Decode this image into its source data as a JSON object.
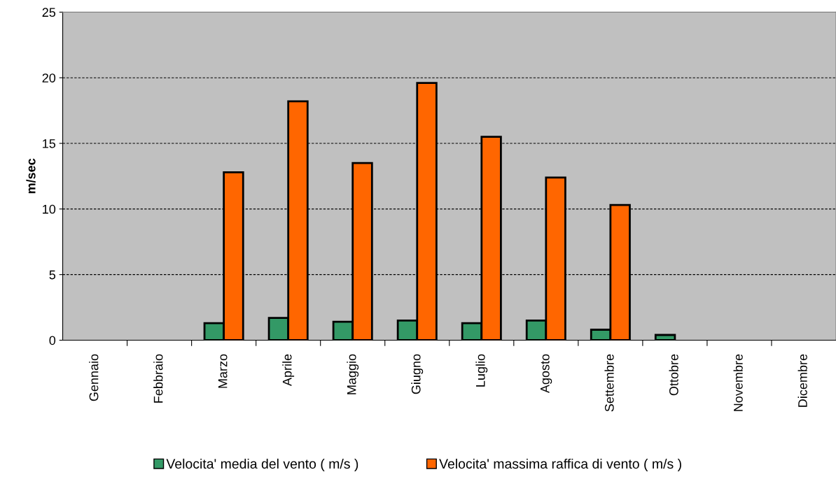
{
  "chart_data": {
    "type": "bar",
    "ylabel": "m/sec",
    "categories": [
      "Gennaio",
      "Febbraio",
      "Marzo",
      "Aprile",
      "Maggio",
      "Giugno",
      "Luglio",
      "Agosto",
      "Settembre",
      "Ottobre",
      "Novembre",
      "Dicembre"
    ],
    "series": [
      {
        "name": "Velocita' media del vento ( m/s )",
        "color": "#339966",
        "values": [
          null,
          null,
          1.3,
          1.7,
          1.4,
          1.5,
          1.3,
          1.5,
          0.8,
          0.4,
          null,
          null
        ]
      },
      {
        "name": "Velocita' massima raffica di vento ( m/s )",
        "color": "#ff6600",
        "values": [
          null,
          null,
          12.8,
          18.2,
          13.5,
          19.6,
          15.5,
          12.4,
          10.3,
          null,
          null,
          null
        ]
      }
    ],
    "ylim": [
      0,
      25
    ],
    "yticks": [
      0,
      5,
      10,
      15,
      20,
      25
    ],
    "grid": "y",
    "legend": "bottom"
  }
}
